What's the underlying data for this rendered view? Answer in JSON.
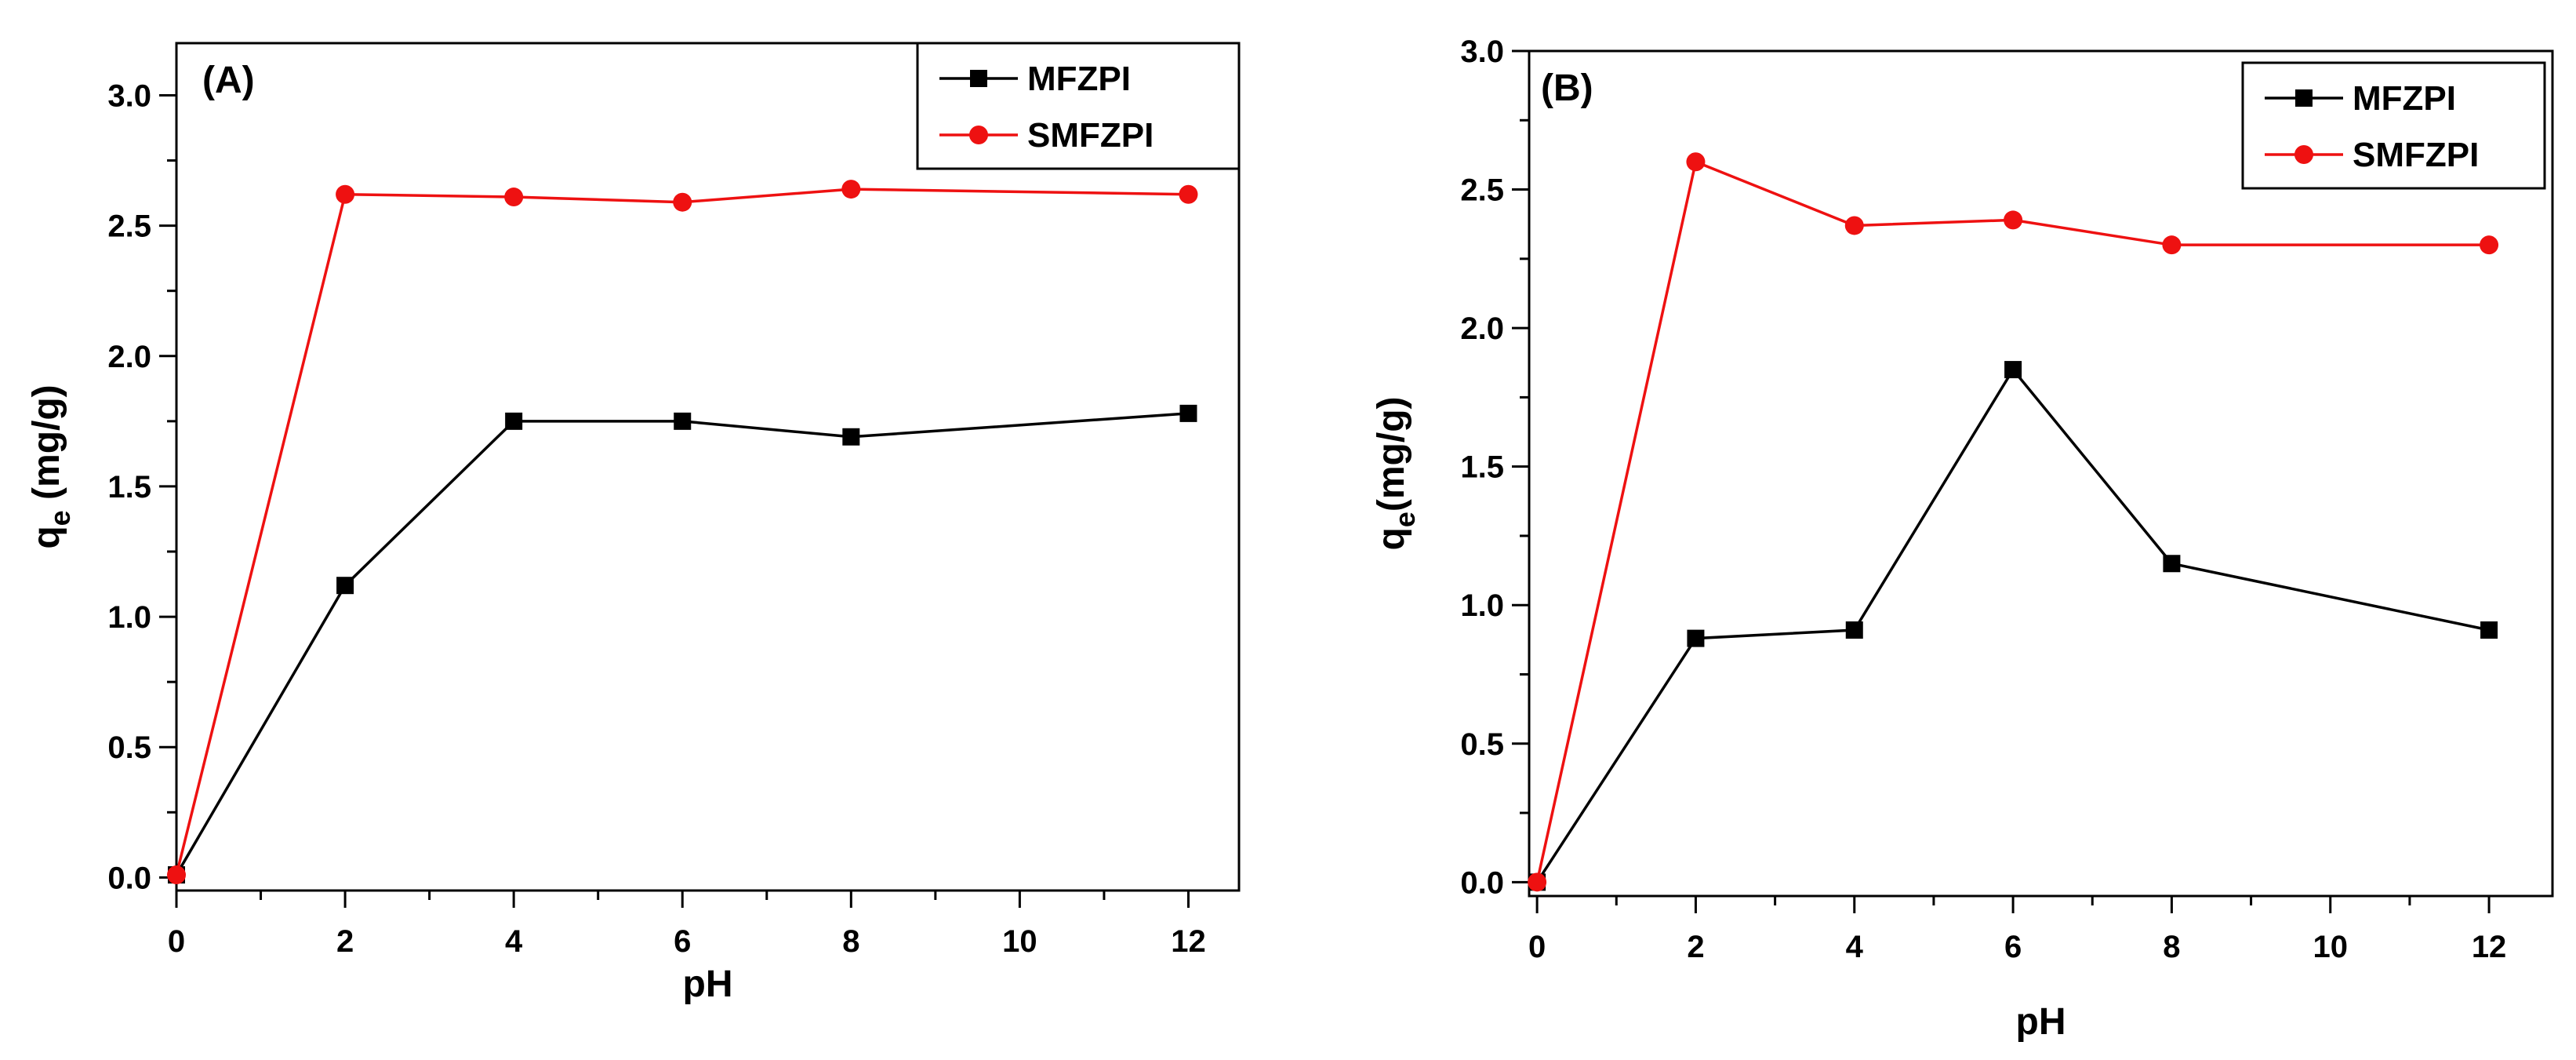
{
  "chart_data": [
    {
      "type": "line",
      "panel_label": "(A)",
      "xlabel": "pH",
      "ylabel": "q",
      "ylabel_sub": "e",
      "ylabel_unit": " (mg/g)",
      "xlim": [
        0,
        12.6
      ],
      "ylim": [
        -0.05,
        3.2
      ],
      "xticks": [
        0,
        2,
        4,
        6,
        8,
        10,
        12
      ],
      "xtick_labels": [
        "0",
        "2",
        "4",
        "6",
        "8",
        "10",
        "12"
      ],
      "yticks": [
        0.0,
        0.5,
        1.0,
        1.5,
        2.0,
        2.5,
        3.0
      ],
      "ytick_labels": [
        "0.0",
        "0.5",
        "1.0",
        "1.5",
        "2.0",
        "2.5",
        "3.0"
      ],
      "legend_position": "top-right",
      "x": [
        0,
        2,
        4,
        6,
        8,
        12
      ],
      "series": [
        {
          "name": "MFZPI",
          "color": "#000000",
          "marker": "square",
          "values": [
            0.01,
            1.12,
            1.75,
            1.75,
            1.69,
            1.78
          ]
        },
        {
          "name": "SMFZPI",
          "color": "#ee1111",
          "marker": "circle",
          "values": [
            0.01,
            2.62,
            2.61,
            2.59,
            2.64,
            2.62
          ]
        }
      ]
    },
    {
      "type": "line",
      "panel_label": "(B)",
      "xlabel": "pH",
      "ylabel": "q",
      "ylabel_sub": "e",
      "ylabel_unit": "(mg/g)",
      "xlim": [
        -0.1,
        12.8
      ],
      "ylim": [
        -0.05,
        3.0
      ],
      "xticks": [
        0,
        2,
        4,
        6,
        8,
        10,
        12
      ],
      "xtick_labels": [
        "0",
        "2",
        "4",
        "6",
        "8",
        "10",
        "12"
      ],
      "yticks": [
        0.0,
        0.5,
        1.0,
        1.5,
        2.0,
        2.5,
        3.0
      ],
      "ytick_labels": [
        "0.0",
        "0.5",
        "1.0",
        "1.5",
        "2.0",
        "2.5",
        "3.0"
      ],
      "legend_position": "top-right",
      "x": [
        0,
        2,
        4,
        6,
        8,
        12
      ],
      "series": [
        {
          "name": "MFZPI",
          "color": "#000000",
          "marker": "square",
          "values": [
            0.0,
            0.88,
            0.91,
            1.85,
            1.15,
            0.91
          ]
        },
        {
          "name": "SMFZPI",
          "color": "#ee1111",
          "marker": "circle",
          "values": [
            0.0,
            2.6,
            2.37,
            2.39,
            2.3,
            2.3
          ]
        }
      ]
    }
  ]
}
